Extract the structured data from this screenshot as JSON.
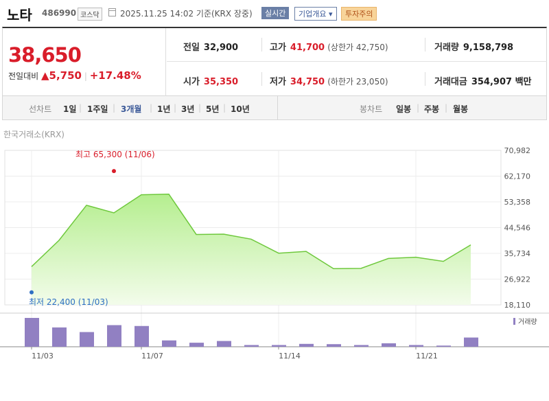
{
  "header": {
    "name": "노타",
    "code": "486990",
    "market": "코스닥",
    "datetime": "2025.11.25 14:02 기준(KRX 장중)",
    "badges": {
      "live": "실시간",
      "company": "기업개요 ▾",
      "warning": "투자주의"
    }
  },
  "price": {
    "current": "38,650",
    "change_label": "전일대비",
    "change_value": "▲5,750",
    "change_pct": "+17.48%"
  },
  "stats": {
    "prev_close": {
      "label": "전일",
      "value": "32,900"
    },
    "high": {
      "label": "고가",
      "value": "41,700",
      "sub": "(상한가 42,750)"
    },
    "volume": {
      "label": "거래량",
      "value": "9,158,798"
    },
    "open": {
      "label": "시가",
      "value": "35,350"
    },
    "low": {
      "label": "저가",
      "value": "34,750",
      "sub": "(하한가 23,050)"
    },
    "amount": {
      "label": "거래대금",
      "value": "354,907 백만"
    }
  },
  "tabs": {
    "line_label": "선차트",
    "line_periods": [
      "1일",
      "1주일",
      "3개월",
      "1년",
      "3년",
      "5년",
      "10년"
    ],
    "active": "3개월",
    "candle_label": "봉차트",
    "candle_periods": [
      "일봉",
      "주봉",
      "월봉"
    ]
  },
  "exchange_label": "한국거래소(KRX)",
  "chart_data": {
    "type": "area",
    "x_ticks": [
      "11/03",
      "11/07",
      "11/14",
      "11/21"
    ],
    "y_ticks": [
      70982,
      62170,
      53358,
      44546,
      35734,
      26922,
      18110
    ],
    "y_tick_labels": [
      "70,982",
      "62,170",
      "53,358",
      "44,546",
      "35,734",
      "26,922",
      "18,110"
    ],
    "ylim": [
      18110,
      70982
    ],
    "dates": [
      "11/03",
      "11/04",
      "11/05",
      "11/06",
      "11/07",
      "11/10",
      "11/11",
      "11/12",
      "11/13",
      "11/14",
      "11/17",
      "11/18",
      "11/19",
      "11/20",
      "11/21",
      "11/24",
      "11/25"
    ],
    "close": [
      31200,
      40200,
      52200,
      49600,
      55800,
      56000,
      42200,
      42300,
      40600,
      35800,
      36400,
      30500,
      30600,
      34000,
      34400,
      33000,
      38650
    ],
    "high_annotation": {
      "label": "최고",
      "value": "65,300",
      "date": "(11/06)",
      "price": 65300
    },
    "low_annotation": {
      "label": "최저",
      "value": "22,400",
      "date": "(11/03)",
      "price": 22400
    },
    "volume_label": "거래량",
    "volume": [
      10,
      6.7,
      5.1,
      7.5,
      7.2,
      2.2,
      1.4,
      2.0,
      0.6,
      0.6,
      1.0,
      0.9,
      0.6,
      1.2,
      0.6,
      0.4,
      3.2
    ],
    "colors": {
      "line": "#6ec83c",
      "area_top": "#b5ee8f",
      "area_bottom": "#f3fceb",
      "volume": "#9180c2",
      "high": "#d91d2a",
      "low": "#2d6fc3"
    }
  }
}
